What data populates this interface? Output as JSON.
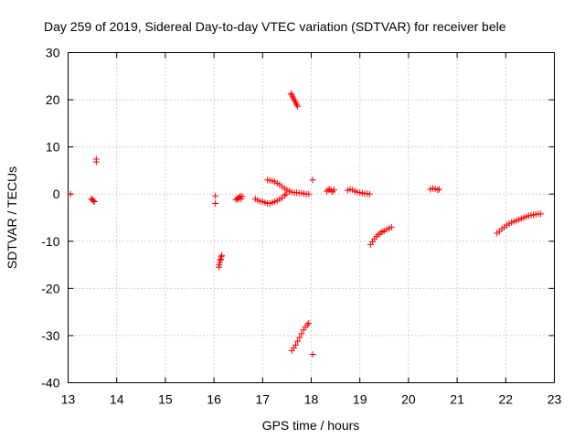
{
  "chart_data": {
    "type": "scatter",
    "title": "Day 259 of 2019, Sidereal Day-to-day VTEC variation (SDTVAR) for receiver bele",
    "xlabel": "GPS time / hours",
    "ylabel": "SDTVAR / TECUs",
    "xlim": [
      13,
      23
    ],
    "ylim": [
      -40,
      30
    ],
    "xticks": [
      "13",
      "14",
      "15",
      "16",
      "17",
      "18",
      "19",
      "20",
      "21",
      "22",
      "23"
    ],
    "yticks": [
      "30",
      "20",
      "10",
      "0",
      "-10",
      "-20",
      "-30",
      "-40"
    ],
    "grid": true,
    "marker": "+",
    "color": "#ff0000",
    "series": [
      {
        "name": "SDTVAR",
        "points": [
          [
            13.05,
            0.0
          ],
          [
            13.48,
            -1.0
          ],
          [
            13.5,
            -1.2
          ],
          [
            13.52,
            -1.4
          ],
          [
            13.54,
            -1.6
          ],
          [
            13.58,
            6.8
          ],
          [
            13.58,
            7.4
          ],
          [
            16.03,
            -0.4
          ],
          [
            16.03,
            -2.0
          ],
          [
            16.1,
            -15.5
          ],
          [
            16.11,
            -15.0
          ],
          [
            16.12,
            -14.5
          ],
          [
            16.13,
            -14.0
          ],
          [
            16.14,
            -13.8
          ],
          [
            16.15,
            -13.3
          ],
          [
            16.16,
            -13.0
          ],
          [
            16.45,
            -1.2
          ],
          [
            16.48,
            -0.9
          ],
          [
            16.5,
            -1.1
          ],
          [
            16.52,
            -0.7
          ],
          [
            16.54,
            -0.4
          ],
          [
            16.56,
            -1.0
          ],
          [
            16.58,
            -0.5
          ],
          [
            16.85,
            -1.0
          ],
          [
            16.9,
            -1.3
          ],
          [
            16.95,
            -1.5
          ],
          [
            17.0,
            -1.6
          ],
          [
            17.05,
            -1.8
          ],
          [
            17.1,
            -2.0
          ],
          [
            17.15,
            -2.0
          ],
          [
            17.2,
            -1.8
          ],
          [
            17.25,
            -1.6
          ],
          [
            17.3,
            -1.4
          ],
          [
            17.35,
            -1.1
          ],
          [
            17.4,
            -0.8
          ],
          [
            17.45,
            -0.3
          ],
          [
            17.48,
            0.0
          ],
          [
            17.1,
            3.0
          ],
          [
            17.15,
            2.9
          ],
          [
            17.2,
            2.8
          ],
          [
            17.25,
            2.6
          ],
          [
            17.3,
            2.3
          ],
          [
            17.35,
            2.0
          ],
          [
            17.4,
            1.6
          ],
          [
            17.45,
            1.2
          ],
          [
            17.5,
            0.9
          ],
          [
            17.55,
            0.6
          ],
          [
            17.6,
            0.4
          ],
          [
            17.65,
            0.3
          ],
          [
            17.7,
            0.3
          ],
          [
            17.75,
            0.2
          ],
          [
            17.8,
            0.2
          ],
          [
            17.85,
            0.1
          ],
          [
            17.9,
            0.0
          ],
          [
            17.95,
            0.0
          ],
          [
            17.58,
            21.3
          ],
          [
            17.6,
            21.0
          ],
          [
            17.62,
            20.6
          ],
          [
            17.64,
            20.2
          ],
          [
            17.66,
            19.8
          ],
          [
            17.68,
            19.4
          ],
          [
            17.7,
            19.0
          ],
          [
            17.72,
            18.6
          ],
          [
            17.6,
            -33.2
          ],
          [
            17.64,
            -32.6
          ],
          [
            17.68,
            -32.0
          ],
          [
            17.72,
            -31.2
          ],
          [
            17.76,
            -30.4
          ],
          [
            17.8,
            -29.6
          ],
          [
            17.84,
            -28.8
          ],
          [
            17.88,
            -28.2
          ],
          [
            17.92,
            -27.7
          ],
          [
            17.95,
            -27.4
          ],
          [
            18.03,
            3.0
          ],
          [
            18.03,
            -34.0
          ],
          [
            18.32,
            0.6
          ],
          [
            18.35,
            0.9
          ],
          [
            18.38,
            1.0
          ],
          [
            18.41,
            0.8
          ],
          [
            18.44,
            0.5
          ],
          [
            18.47,
            0.9
          ],
          [
            18.75,
            0.8
          ],
          [
            18.8,
            1.0
          ],
          [
            18.85,
            0.9
          ],
          [
            18.9,
            0.6
          ],
          [
            18.95,
            0.4
          ],
          [
            19.0,
            0.3
          ],
          [
            19.05,
            0.2
          ],
          [
            19.1,
            0.1
          ],
          [
            19.15,
            0.1
          ],
          [
            19.2,
            0.0
          ],
          [
            19.22,
            -10.7
          ],
          [
            19.26,
            -10.1
          ],
          [
            19.3,
            -9.5
          ],
          [
            19.34,
            -9.0
          ],
          [
            19.38,
            -8.6
          ],
          [
            19.42,
            -8.3
          ],
          [
            19.46,
            -8.0
          ],
          [
            19.5,
            -7.8
          ],
          [
            19.55,
            -7.5
          ],
          [
            19.6,
            -7.3
          ],
          [
            19.65,
            -7.0
          ],
          [
            20.45,
            1.0
          ],
          [
            20.5,
            1.2
          ],
          [
            20.55,
            1.1
          ],
          [
            20.6,
            0.9
          ],
          [
            20.63,
            1.0
          ],
          [
            21.82,
            -8.3
          ],
          [
            21.87,
            -7.9
          ],
          [
            21.92,
            -7.4
          ],
          [
            21.97,
            -7.0
          ],
          [
            22.02,
            -6.6
          ],
          [
            22.07,
            -6.3
          ],
          [
            22.12,
            -6.0
          ],
          [
            22.17,
            -5.8
          ],
          [
            22.22,
            -5.6
          ],
          [
            22.27,
            -5.4
          ],
          [
            22.32,
            -5.2
          ],
          [
            22.37,
            -5.0
          ],
          [
            22.42,
            -4.8
          ],
          [
            22.47,
            -4.6
          ],
          [
            22.52,
            -4.5
          ],
          [
            22.57,
            -4.4
          ],
          [
            22.62,
            -4.3
          ],
          [
            22.67,
            -4.2
          ],
          [
            22.72,
            -4.2
          ]
        ]
      }
    ]
  }
}
